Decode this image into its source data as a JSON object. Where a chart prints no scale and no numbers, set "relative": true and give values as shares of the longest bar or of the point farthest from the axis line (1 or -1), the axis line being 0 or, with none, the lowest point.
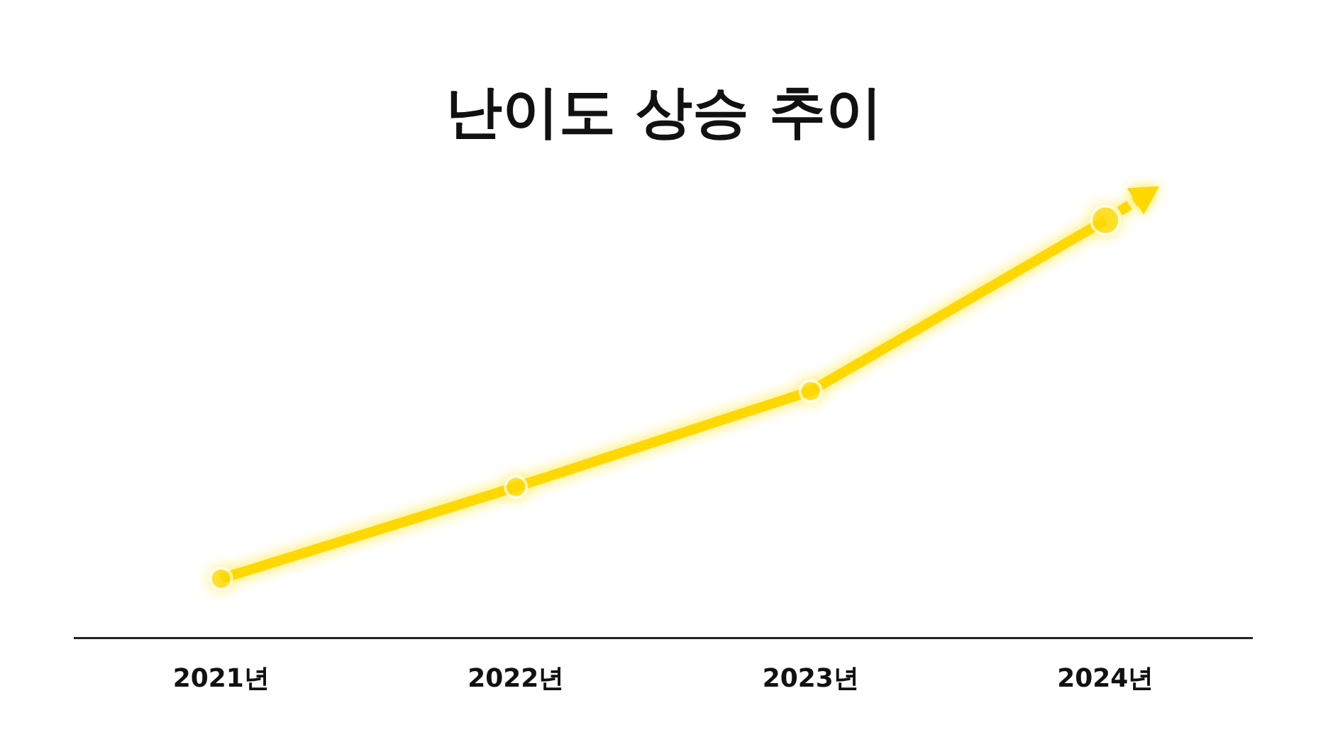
{
  "chart_data": {
    "type": "line",
    "title": "난이도 상승 추이",
    "categories": [
      "2021년",
      "2022년",
      "2023년",
      "2024년"
    ],
    "relative": true,
    "series": [
      {
        "color": "#ffd800",
        "values": [
          0.14,
          0.36,
          0.59,
          1.0
        ]
      }
    ],
    "marker": "circle",
    "line_style": "solid"
  }
}
